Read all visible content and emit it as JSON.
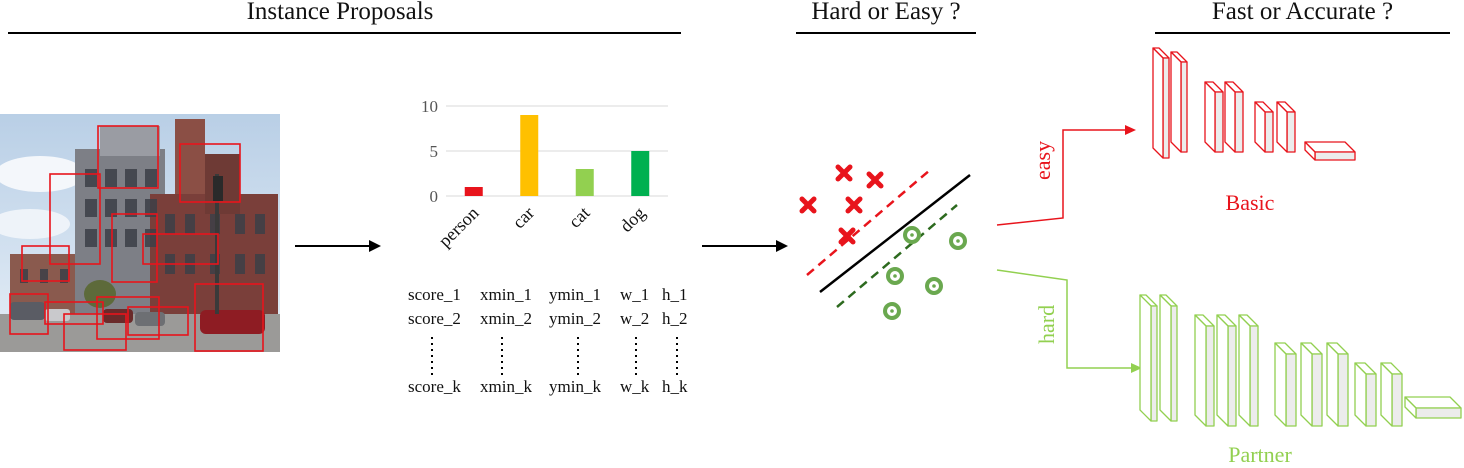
{
  "sections": {
    "instance_proposals": "Instance Proposals",
    "hard_or_easy": "Hard or Easy ?",
    "fast_or_accurate": "Fast or Accurate ?"
  },
  "chart_data": {
    "type": "bar",
    "categories": [
      "person",
      "car",
      "cat",
      "dog"
    ],
    "values": [
      1,
      9,
      3,
      5
    ],
    "colors": [
      "#e8141c",
      "#ffc000",
      "#92d050",
      "#00b050"
    ],
    "ylim": [
      0,
      10
    ],
    "yticks": [
      0,
      5,
      10
    ],
    "grid": true
  },
  "proposals": {
    "rows": [
      [
        "score_1",
        "xmin_1",
        "ymin_1",
        "w_1",
        "h_1"
      ],
      [
        "score_2",
        "xmin_2",
        "ymin_2",
        "w_2",
        "h_2"
      ],
      [
        "score_k",
        "xmin_k",
        "ymin_k",
        "w_k",
        "h_k"
      ]
    ]
  },
  "branches": {
    "easy": "easy",
    "hard": "hard",
    "easy_color": "#e8141c",
    "hard_color": "#92d050"
  },
  "networks": {
    "basic": "Basic",
    "partner": "Partner"
  }
}
